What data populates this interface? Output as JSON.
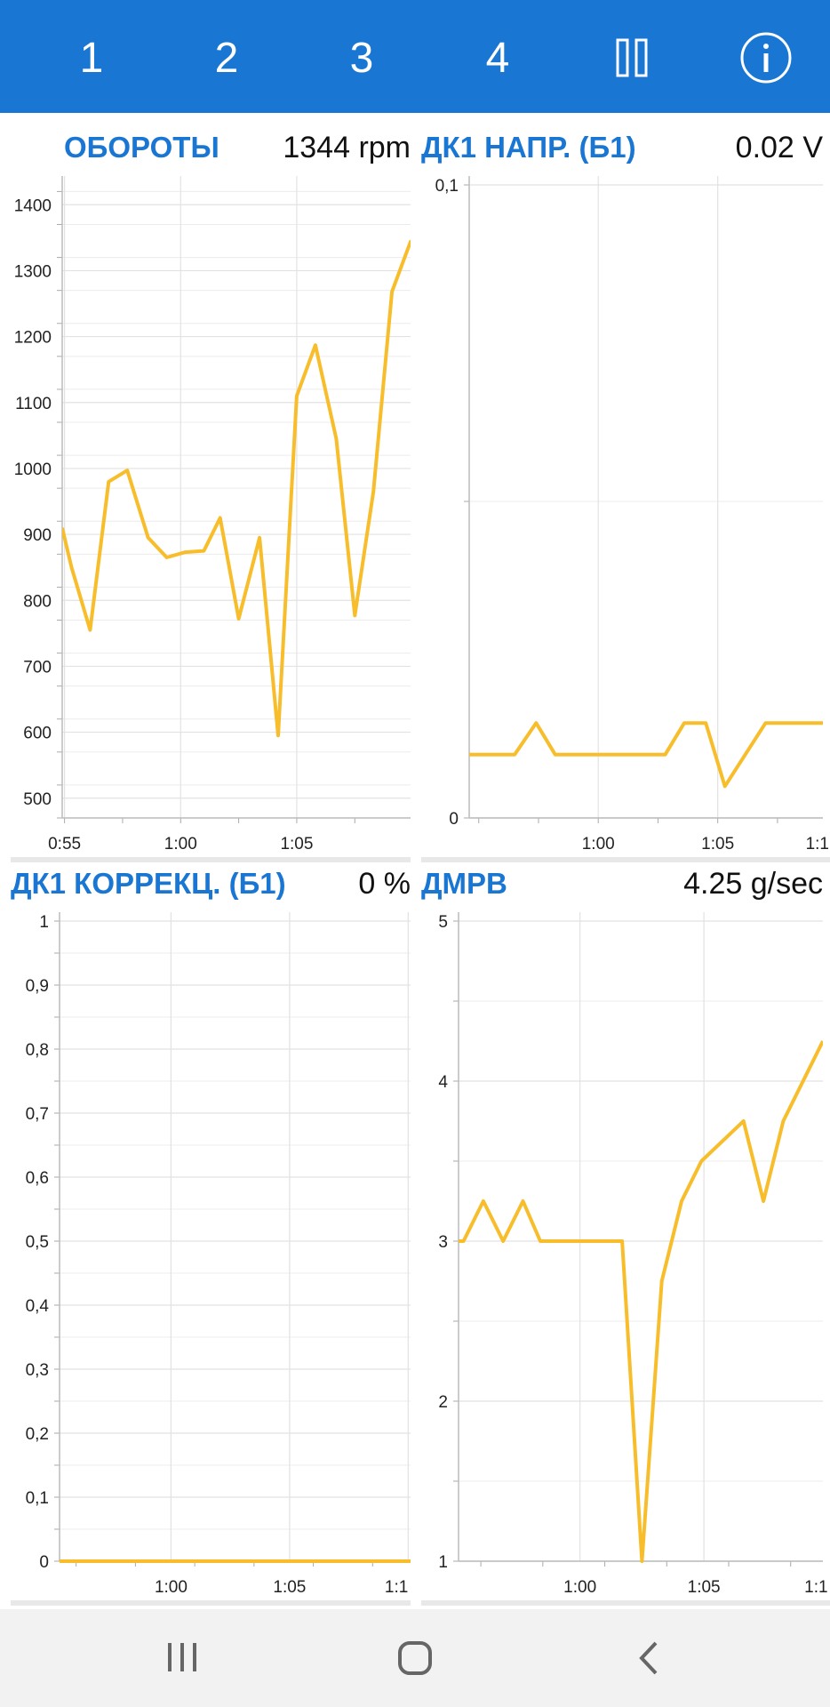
{
  "tabs": [
    "1",
    "2",
    "3",
    "4"
  ],
  "icons": {
    "pause": "pause-icon",
    "info": "info-icon"
  },
  "colors": {
    "header": "#1976d2",
    "line": "#f7bd2a",
    "title": "#1976d2"
  },
  "panels": [
    {
      "title": "ОБОРОТЫ",
      "value": "1344",
      "unit": "rpm"
    },
    {
      "title": "ДК1 НАПР. (Б1)",
      "value": "0.02",
      "unit": "V"
    },
    {
      "title": "ДК1 КОРРЕКЦ. (Б1)",
      "value": "0",
      "unit": "%"
    },
    {
      "title": "ДМРВ",
      "value": "4.25",
      "unit": "g/sec"
    }
  ],
  "chart_data": [
    {
      "type": "line",
      "title": "ОБОРОТЫ",
      "x_ticks": [
        "0:55",
        "1:00",
        "1:05"
      ],
      "y_ticks": [
        "500",
        "600",
        "700",
        "800",
        "900",
        "1000",
        "1100",
        "1200",
        "1300",
        "1400"
      ],
      "ylim": [
        470,
        1430
      ],
      "x": [
        54.9,
        55.3,
        56.1,
        56.9,
        57.7,
        58.6,
        59.4,
        60.2,
        61.0,
        61.7,
        62.5,
        63.4,
        64.2,
        65.0,
        65.8,
        66.7,
        67.5,
        68.3,
        69.1,
        69.9,
        70.7
      ],
      "y": [
        910,
        850,
        755,
        980,
        997,
        895,
        865,
        873,
        875,
        925,
        772,
        895,
        595,
        1110,
        1187,
        1045,
        777,
        965,
        1268,
        1344,
        1344
      ],
      "xlim": [
        54.9,
        69.9
      ],
      "grid": true
    },
    {
      "type": "line",
      "title": "ДК1 НАПР. (Б1)",
      "x_ticks": [
        "1:00",
        "1:05",
        "1:1"
      ],
      "y_ticks": [
        "0",
        "0,1"
      ],
      "ylim": [
        0,
        0.1
      ],
      "x": [
        54.6,
        56.5,
        57.4,
        58.2,
        61.7,
        62.8,
        63.6,
        64.5,
        65.3,
        67.0,
        69.4
      ],
      "y": [
        0.01,
        0.01,
        0.015,
        0.01,
        0.01,
        0.01,
        0.015,
        0.015,
        0.005,
        0.015,
        0.015
      ],
      "xlim": [
        54.6,
        69.4
      ],
      "grid": true
    },
    {
      "type": "line",
      "title": "ДК1 КОРРЕКЦ. (Б1)",
      "x_ticks": [
        "1:00",
        "1:05",
        "1:1"
      ],
      "y_ticks": [
        "0",
        "0,1",
        "0,2",
        "0,3",
        "0,4",
        "0,5",
        "0,6",
        "0,7",
        "0,8",
        "0,9",
        "1"
      ],
      "ylim": [
        0,
        1
      ],
      "x": [
        55.3,
        70.5
      ],
      "y": [
        0,
        0
      ],
      "xlim": [
        55.3,
        70.1
      ],
      "grid": true
    },
    {
      "type": "line",
      "title": "ДМРВ",
      "x_ticks": [
        "1:00",
        "1:05",
        "1:1"
      ],
      "y_ticks": [
        "1",
        "2",
        "3",
        "4",
        "5"
      ],
      "ylim": [
        1,
        5
      ],
      "x": [
        55.1,
        55.3,
        56.1,
        56.9,
        57.7,
        58.4,
        60.9,
        61.7,
        62.5,
        63.3,
        64.1,
        64.9,
        66.6,
        67.4,
        68.2,
        69.8
      ],
      "y": [
        3,
        3,
        3.25,
        3,
        3.25,
        3,
        3,
        3,
        1,
        2.75,
        3.25,
        3.5,
        3.75,
        3.25,
        3.75,
        4.25
      ],
      "xlim": [
        55.1,
        69.8
      ],
      "grid": true
    }
  ]
}
